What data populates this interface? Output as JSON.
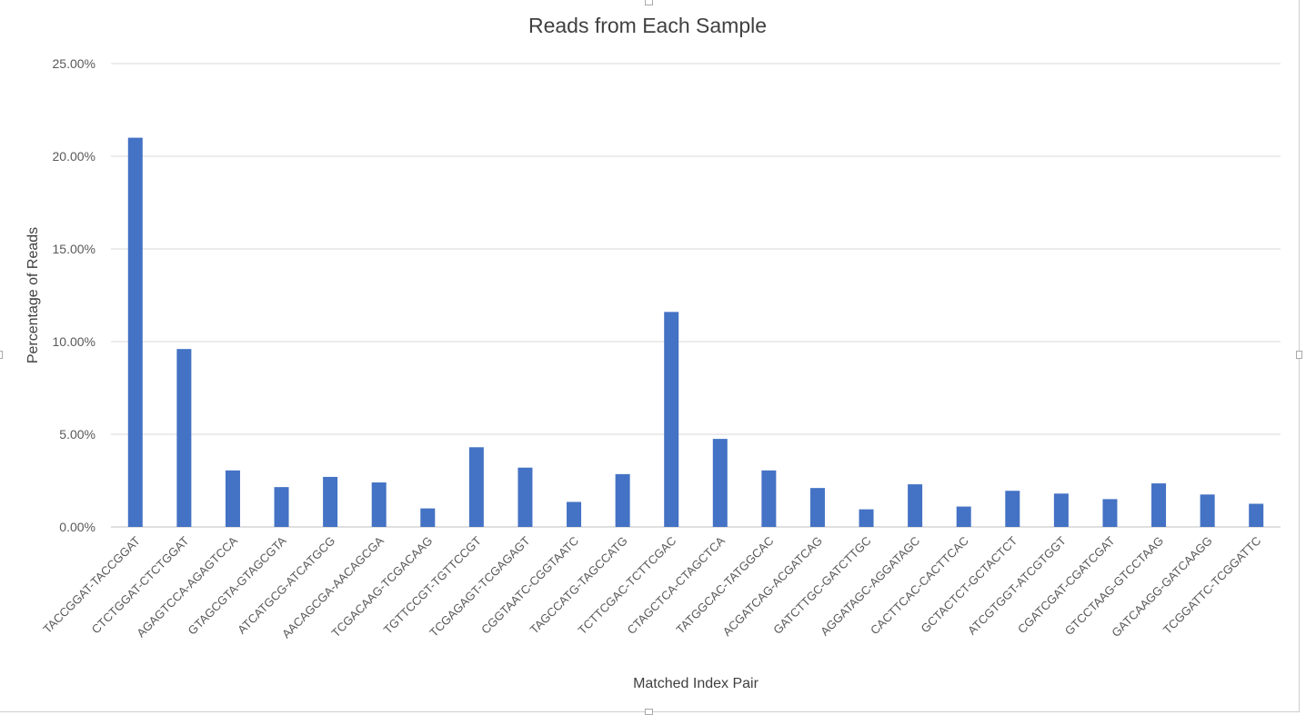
{
  "chart_data": {
    "type": "bar",
    "title": "Reads from Each Sample",
    "xlabel": "Matched Index Pair",
    "ylabel": "Percentage of Reads",
    "ylim": [
      0,
      25
    ],
    "yticks": [
      "0.00%",
      "5.00%",
      "10.00%",
      "15.00%",
      "20.00%",
      "25.00%"
    ],
    "grid": true,
    "bar_color": "#4472c4",
    "categories": [
      "TACCGGAT-TACCGGAT",
      "CTCTGGAT-CTCTGGAT",
      "AGAGTCCA-AGAGTCCA",
      "GTAGCGTA-GTAGCGTA",
      "ATCATGCG-ATCATGCG",
      "AACAGCGA-AACAGCGA",
      "TCGACAAG-TCGACAAG",
      "TGTTCCGT-TGTTCCGT",
      "TCGAGAGT-TCGAGAGT",
      "CGGTAATC-CGGTAATC",
      "TAGCCATG-TAGCCATG",
      "TCTTCGAC-TCTTCGAC",
      "CTAGCTCA-CTAGCTCA",
      "TATGGCAC-TATGGCAC",
      "ACGATCAG-ACGATCAG",
      "GATCTTGC-GATCTTGC",
      "AGGATAGC-AGGATAGC",
      "CACTTCAC-CACTTCAC",
      "GCTACTCT-GCTACTCT",
      "ATCGTGGT-ATCGTGGT",
      "CGATCGAT-CGATCGAT",
      "GTCCTAAG-GTCCTAAG",
      "GATCAAGG-GATCAAGG",
      "TCGGATTC-TCGGATTC"
    ],
    "values": [
      21.0,
      9.6,
      3.05,
      2.15,
      2.7,
      2.4,
      1.0,
      4.3,
      3.2,
      1.35,
      2.85,
      11.6,
      4.75,
      3.05,
      2.1,
      0.95,
      2.3,
      1.1,
      1.95,
      1.8,
      1.5,
      2.35,
      1.75,
      1.25
    ]
  }
}
